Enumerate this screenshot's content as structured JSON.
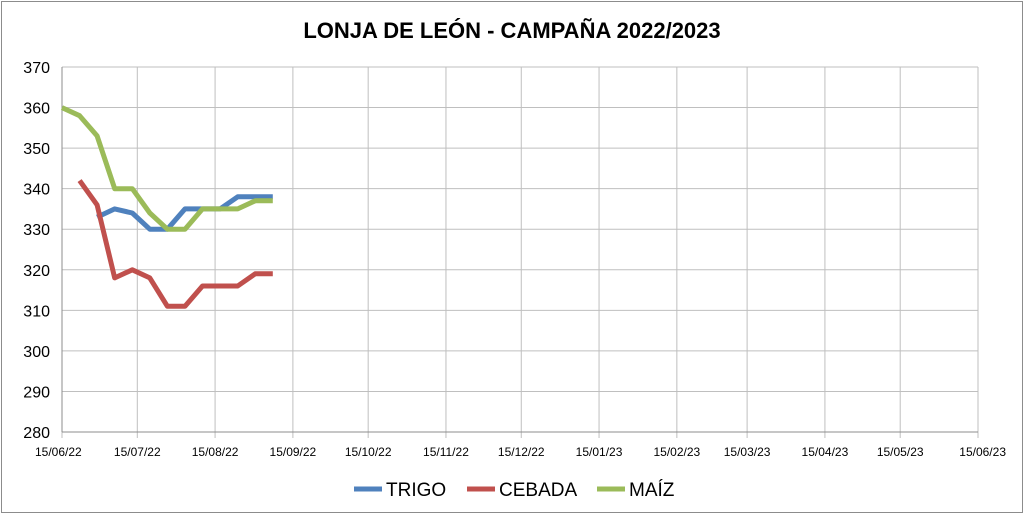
{
  "chart_data": {
    "type": "line",
    "title": "LONJA DE LEÓN - CAMPAÑA 2022/2023",
    "xlabel": "",
    "ylabel": "",
    "ylim": [
      280,
      370
    ],
    "yticks": [
      "280",
      "290",
      "300",
      "310",
      "320",
      "330",
      "340",
      "350",
      "360",
      "370"
    ],
    "xticks": [
      "15/06/22",
      "15/07/22",
      "15/08/22",
      "15/09/22",
      "15/10/22",
      "15/11/22",
      "15/12/22",
      "15/01/23",
      "15/02/23",
      "15/03/23",
      "15/04/23",
      "15/05/23",
      "15/06/23"
    ],
    "x_week_labels_weeks": [
      0,
      4.286,
      8.714,
      13.143,
      17.429,
      21.857,
      26.143,
      30.571,
      35.0,
      39.0,
      43.429,
      47.714,
      52.143
    ],
    "grid": true,
    "legend": "bottom",
    "series": [
      {
        "name": "TRIGO",
        "color": "#4f81bd",
        "x": [
          2.0,
          3.0,
          4.0,
          5.0,
          6.0,
          7.0,
          8.0,
          9.0,
          10.0,
          11.0,
          12.0
        ],
        "y": [
          333,
          335,
          334,
          330,
          330,
          335,
          335,
          335,
          338,
          338,
          338
        ]
      },
      {
        "name": "CEBADA",
        "color": "#c0504d",
        "x": [
          1.0,
          2.0,
          3.0,
          4.0,
          5.0,
          6.0,
          7.0,
          8.0,
          9.0,
          10.0,
          11.0,
          12.0
        ],
        "y": [
          342,
          336,
          318,
          320,
          318,
          311,
          311,
          316,
          316,
          316,
          319,
          319
        ]
      },
      {
        "name": "MAÍZ",
        "color": "#9bbb59",
        "x": [
          0.0,
          1.0,
          2.0,
          3.0,
          4.0,
          5.0,
          6.0,
          7.0,
          8.0,
          9.0,
          10.0,
          11.0,
          12.0
        ],
        "y": [
          360,
          358,
          353,
          340,
          340,
          334,
          330,
          330,
          335,
          335,
          335,
          337,
          337
        ]
      }
    ]
  }
}
